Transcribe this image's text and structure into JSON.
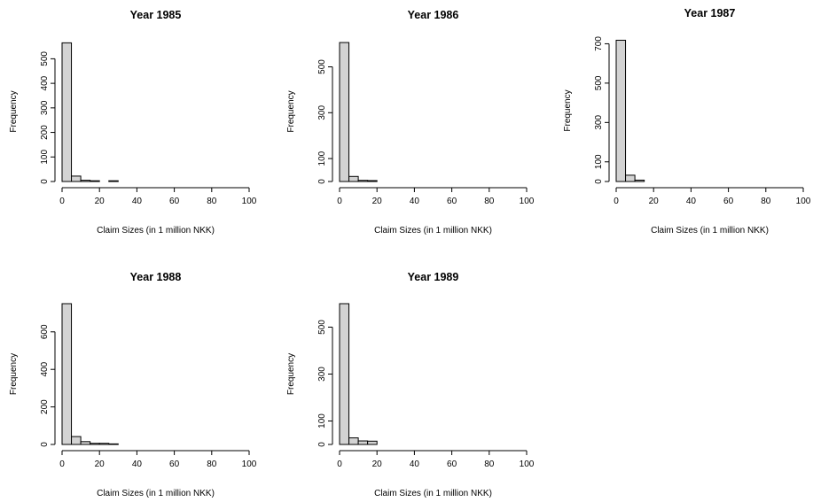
{
  "chart_data": [
    {
      "type": "bar",
      "title": "Year 1985",
      "xlabel": "Claim Sizes (in 1 million NKK)",
      "ylabel": "Frequency",
      "bin_width": 5,
      "xlim": [
        0,
        100
      ],
      "xticks": [
        "0",
        "20",
        "40",
        "60",
        "80",
        "100"
      ],
      "ylim": [
        0,
        570
      ],
      "yticks": [
        "0",
        "100",
        "200",
        "300",
        "400",
        "500"
      ],
      "bin_start": [
        0,
        5,
        10,
        15,
        20,
        25
      ],
      "values": [
        565,
        22,
        5,
        3,
        0,
        3
      ],
      "bar_color": "#d3d3d3"
    },
    {
      "type": "bar",
      "title": "Year 1986",
      "xlabel": "Claim Sizes (in 1 million NKK)",
      "ylabel": "Frequency",
      "bin_width": 5,
      "xlim": [
        0,
        100
      ],
      "xticks": [
        "0",
        "20",
        "40",
        "60",
        "80",
        "100"
      ],
      "ylim": [
        0,
        610
      ],
      "yticks": [
        "0",
        "100",
        "300",
        "500"
      ],
      "bin_start": [
        0,
        5,
        10,
        15
      ],
      "values": [
        606,
        22,
        5,
        4
      ],
      "bar_color": "#d3d3d3"
    },
    {
      "type": "bar",
      "title": "Year 1987",
      "xlabel": "Claim Sizes (in 1 million NKK)",
      "ylabel": "Frequency",
      "bin_width": 5,
      "xlim": [
        0,
        100
      ],
      "xticks": [
        "0",
        "20",
        "40",
        "60",
        "80",
        "100"
      ],
      "ylim": [
        0,
        720
      ],
      "yticks": [
        "0",
        "100",
        "300",
        "500",
        "700"
      ],
      "bin_start": [
        0,
        5,
        10
      ],
      "values": [
        718,
        32,
        7
      ],
      "bar_color": "#d3d3d3"
    },
    {
      "type": "bar",
      "title": "Year 1988",
      "xlabel": "Claim Sizes (in 1 million NKK)",
      "ylabel": "Frequency",
      "bin_width": 5,
      "xlim": [
        0,
        100
      ],
      "xticks": [
        "0",
        "20",
        "40",
        "60",
        "80",
        "100"
      ],
      "ylim": [
        0,
        750
      ],
      "yticks": [
        "0",
        "200",
        "400",
        "600"
      ],
      "bin_start": [
        0,
        5,
        10,
        15,
        20,
        25
      ],
      "values": [
        750,
        42,
        15,
        6,
        6,
        3
      ],
      "bar_color": "#d3d3d3"
    },
    {
      "type": "bar",
      "title": "Year 1989",
      "xlabel": "Claim Sizes (in 1 million NKK)",
      "ylabel": "Frequency",
      "bin_width": 5,
      "xlim": [
        0,
        100
      ],
      "xticks": [
        "0",
        "20",
        "40",
        "60",
        "80",
        "100"
      ],
      "ylim": [
        0,
        600
      ],
      "yticks": [
        "0",
        "100",
        "300",
        "500"
      ],
      "bin_start": [
        0,
        5,
        10,
        15
      ],
      "values": [
        600,
        28,
        15,
        14
      ],
      "bar_color": "#d3d3d3"
    }
  ]
}
